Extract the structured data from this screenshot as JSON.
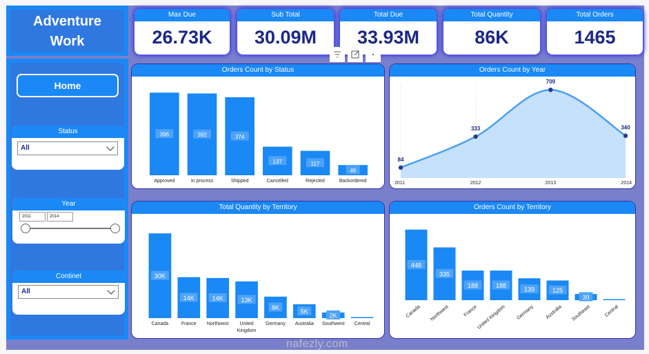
{
  "brand": {
    "line1": "Adventure",
    "line2": "Work"
  },
  "colors": {
    "accent": "#1a88f5",
    "sidebar": "#2f78e0",
    "background": "#7a7fcc",
    "kpi_value": "#1b2786",
    "bar": "#1a88f5",
    "area_fill": "#c6e1fb",
    "line": "#4a9ff0",
    "marker": "#2b3a8a"
  },
  "sidebar": {
    "home_label": "Home",
    "status": {
      "title": "Status",
      "value": "All"
    },
    "year": {
      "title": "Year",
      "from": "2011",
      "to": "2014"
    },
    "continent": {
      "title": "Continet",
      "value": "All"
    }
  },
  "kpis": [
    {
      "label": "Max Due",
      "value": "26.73K"
    },
    {
      "label": "Sub Total",
      "value": "30.09M"
    },
    {
      "label": "Total Due",
      "value": "33.93M"
    },
    {
      "label": "Total Quantity",
      "value": "86K"
    },
    {
      "label": "Total Orders",
      "value": "1465"
    }
  ],
  "visual_toolbar": {
    "icons": [
      "filter-icon",
      "focus-mode-icon",
      "more-options-icon"
    ]
  },
  "watermark": "nafezly.com",
  "chart_data": [
    {
      "id": "status",
      "type": "bar",
      "title": "Orders Count by Status",
      "categories": [
        "Approved",
        "In process",
        "Shipped",
        "Cancelled",
        "Rejected",
        "Backordered"
      ],
      "values": [
        396,
        392,
        374,
        137,
        117,
        49
      ],
      "labels": [
        "396",
        "392",
        "374",
        "137",
        "117",
        "49"
      ],
      "xlabel": "",
      "ylabel": "",
      "ylim": [
        0,
        420
      ],
      "grid": false
    },
    {
      "id": "year",
      "type": "area",
      "title": "Orders Count by Year",
      "x": [
        "2011",
        "2012",
        "2013",
        "2014"
      ],
      "values": [
        84,
        333,
        709,
        340
      ],
      "labels": [
        "84",
        "333",
        "709",
        "340"
      ],
      "xlabel": "",
      "ylabel": "",
      "ylim": [
        0,
        760
      ],
      "grid": false
    },
    {
      "id": "qty_territory",
      "type": "bar",
      "title": "Total Quantity by Territory",
      "categories": [
        "Canada",
        "France",
        "Northwest",
        "United Kingdom",
        "Germany",
        "Australia",
        "Southwest",
        "Central"
      ],
      "values": [
        30000,
        14500,
        14200,
        13000,
        7600,
        4900,
        2000,
        100
      ],
      "labels": [
        "30K",
        "14K",
        "14K",
        "13K",
        "8K",
        "5K",
        "2K",
        ""
      ],
      "xlabel": "",
      "ylabel": "",
      "ylim": [
        0,
        32000
      ],
      "grid": false
    },
    {
      "id": "orders_territory",
      "type": "bar",
      "title": "Orders Count by Territory",
      "categories": [
        "Canada",
        "Northwest",
        "France",
        "United Kingdom",
        "Germany",
        "Australia",
        "Southeast",
        "Central"
      ],
      "values": [
        448,
        335,
        188,
        188,
        139,
        125,
        39,
        3
      ],
      "labels": [
        "448",
        "335",
        "188",
        "188",
        "139",
        "125",
        "39",
        ""
      ],
      "xlabel": "",
      "ylabel": "",
      "ylim": [
        0,
        460
      ],
      "grid": false
    }
  ]
}
